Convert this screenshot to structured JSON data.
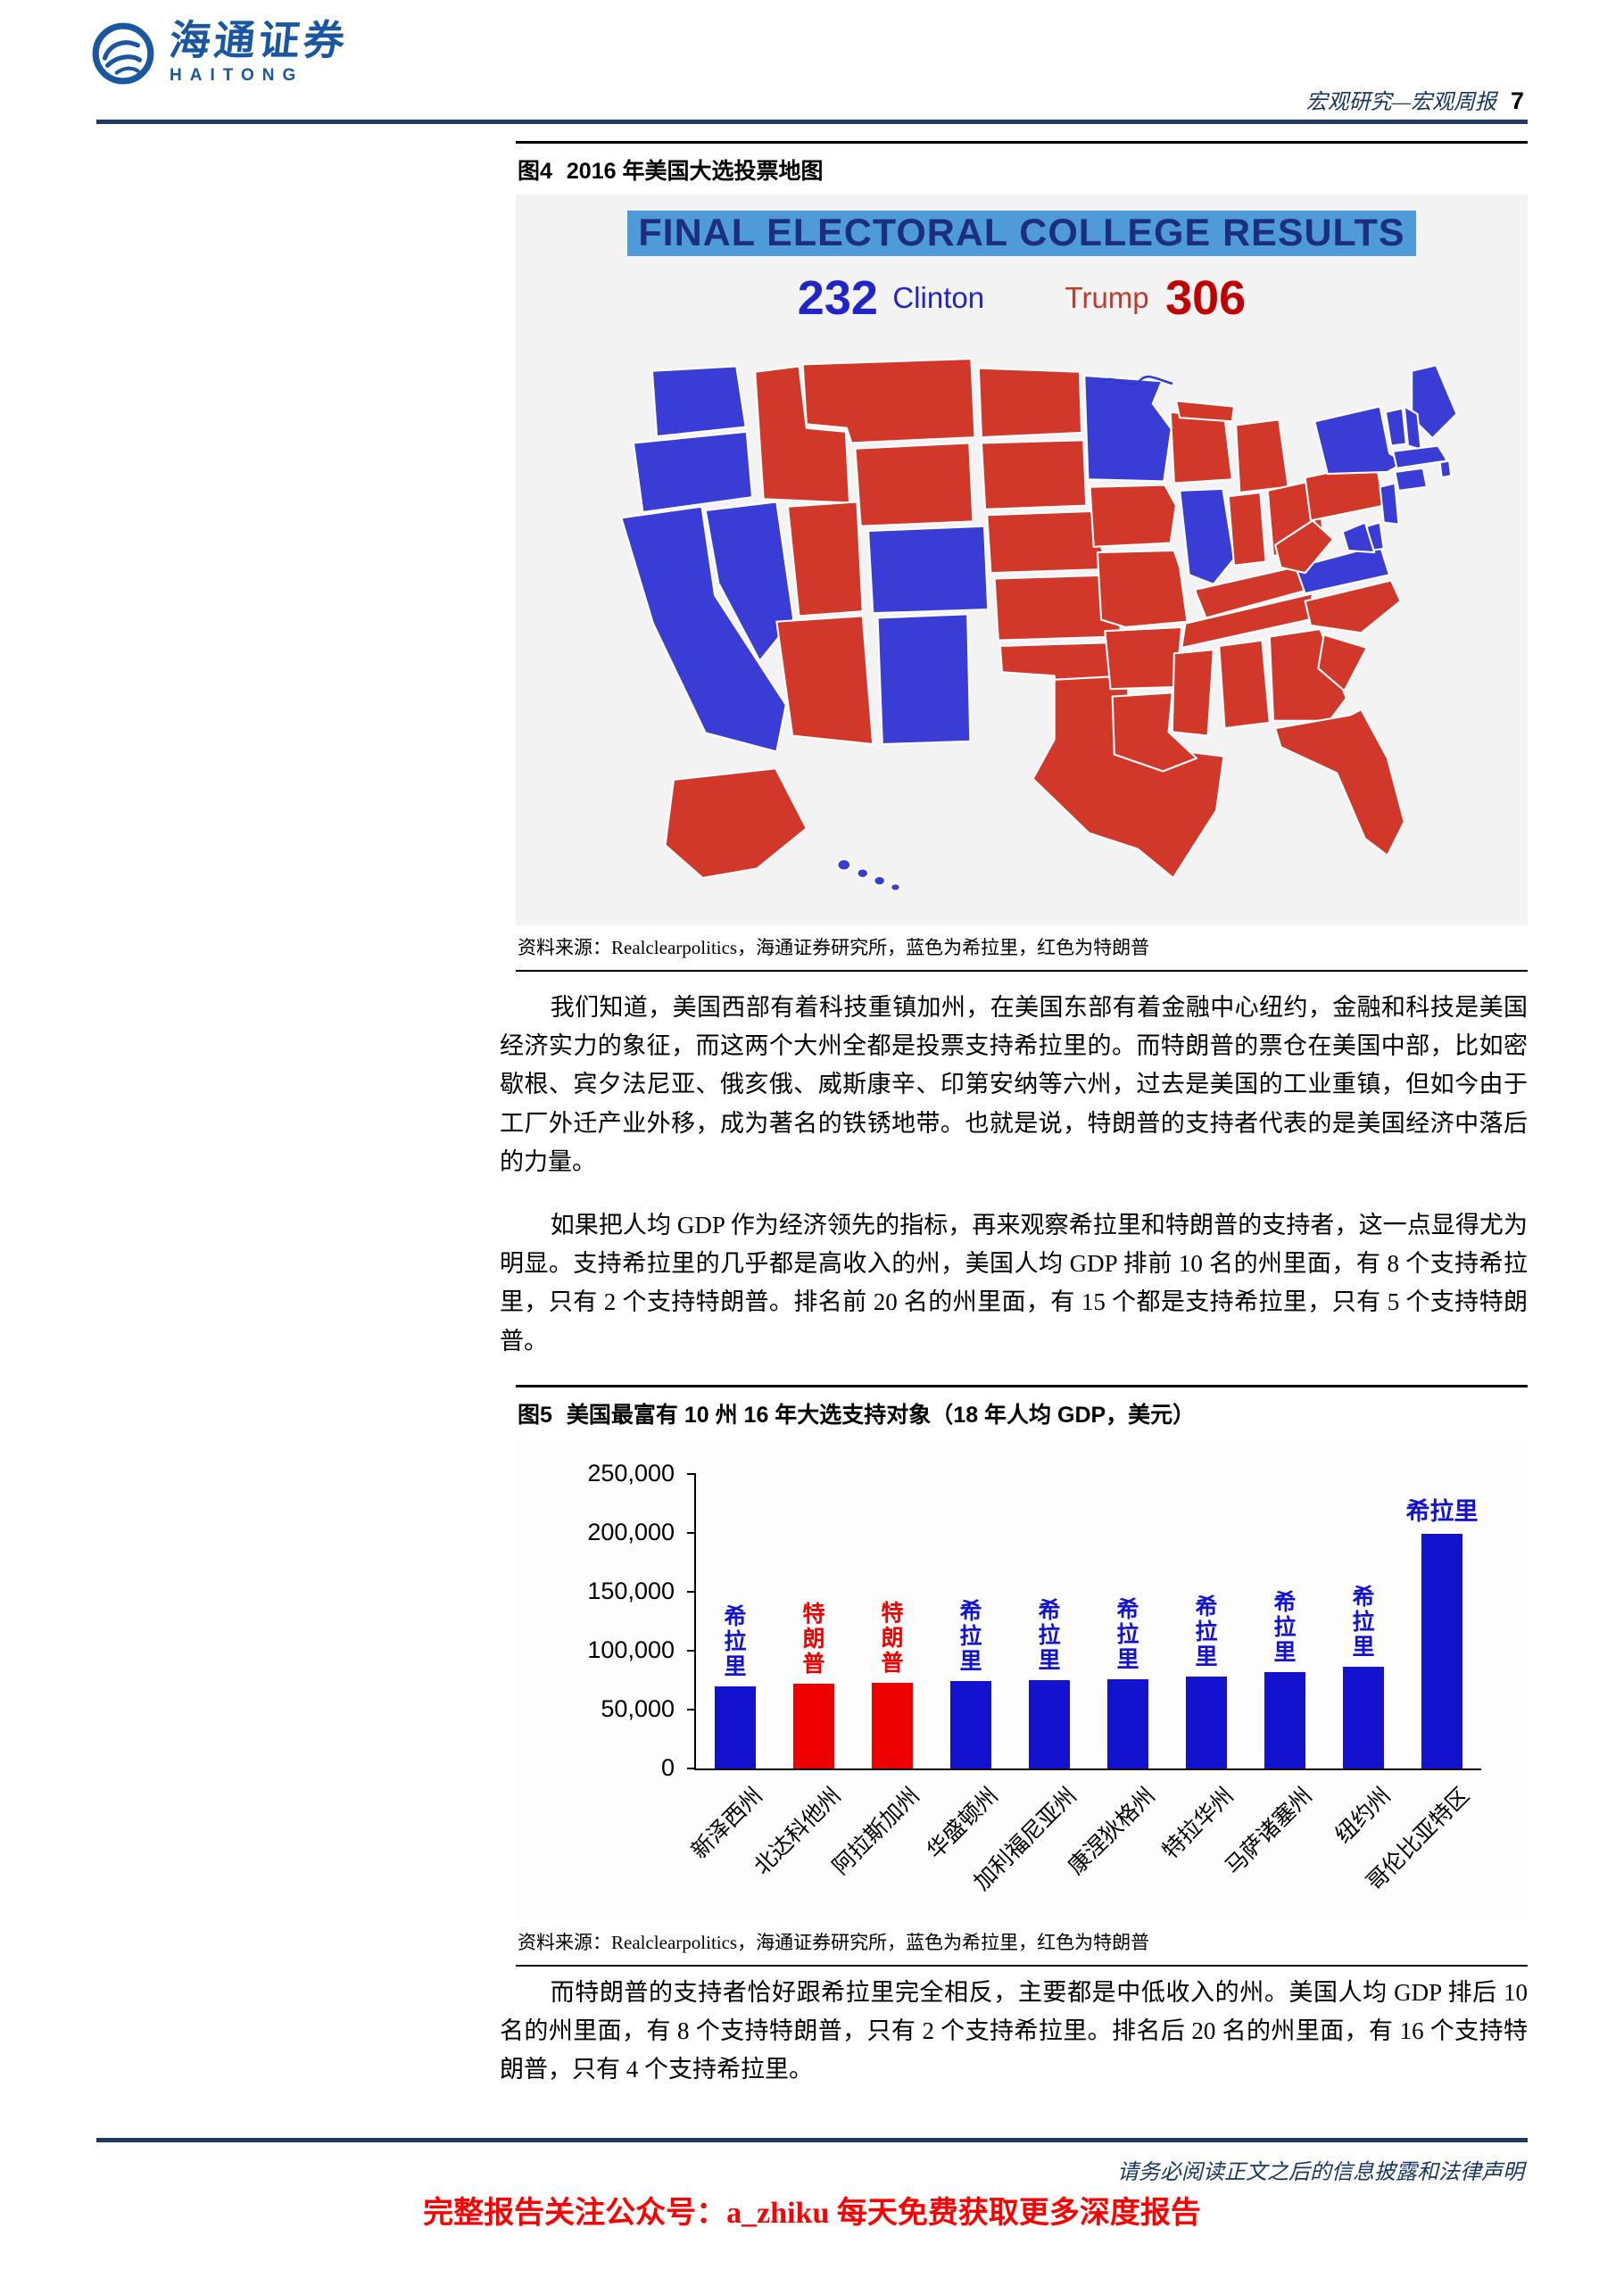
{
  "header": {
    "brand_cn": "海通证券",
    "brand_en": "HAITONG",
    "doc_type": "宏观研究—宏观周报",
    "page_number": "7"
  },
  "figure4": {
    "tag": "图4",
    "title": "2016 年美国大选投票地图",
    "banner": "FINAL ELECTORAL COLLEGE RESULTS",
    "clinton_value": "232",
    "clinton_name": "Clinton",
    "trump_name": "Trump",
    "trump_value": "306",
    "source": "资料来源：Realclearpolitics，海通证券研究所，蓝色为希拉里，红色为特朗普",
    "map": {
      "dem_color": "#3a3cd6",
      "rep_color": "#d2382a",
      "parties": {
        "WA": "D",
        "OR": "D",
        "CA": "D",
        "NV": "D",
        "ID": "R",
        "MT": "R",
        "WY": "R",
        "UT": "R",
        "CO": "D",
        "AZ": "R",
        "NM": "D",
        "ND": "R",
        "SD": "R",
        "NE": "R",
        "KS": "R",
        "OK": "R",
        "TX": "R",
        "MN": "D",
        "IA": "R",
        "MO": "R",
        "AR": "R",
        "LA": "R",
        "WI": "R",
        "IL": "D",
        "MI": "R",
        "IN": "R",
        "OH": "R",
        "KY": "R",
        "TN": "R",
        "MS": "R",
        "AL": "R",
        "GA": "R",
        "FL": "R",
        "SC": "R",
        "NC": "R",
        "VA": "D",
        "WV": "R",
        "PA": "R",
        "NY": "D",
        "ME": "D",
        "VT": "D",
        "NH": "D",
        "MA": "D",
        "CT": "D",
        "RI": "D",
        "NJ": "D",
        "DE": "D",
        "MD": "D",
        "AK": "R",
        "HI": "D"
      }
    }
  },
  "paragraphs": {
    "p1": "我们知道，美国西部有着科技重镇加州，在美国东部有着金融中心纽约，金融和科技是美国经济实力的象征，而这两个大州全都是投票支持希拉里的。而特朗普的票仓在美国中部，比如密歇根、宾夕法尼亚、俄亥俄、威斯康辛、印第安纳等六州，过去是美国的工业重镇，但如今由于工厂外迁产业外移，成为著名的铁锈地带。也就是说，特朗普的支持者代表的是美国经济中落后的力量。",
    "p2": "如果把人均 GDP 作为经济领先的指标，再来观察希拉里和特朗普的支持者，这一点显得尤为明显。支持希拉里的几乎都是高收入的州，美国人均 GDP 排前 10 名的州里面，有 8 个支持希拉里，只有 2 个支持特朗普。排名前 20 名的州里面，有 15 个都是支持希拉里，只有 5 个支持特朗普。",
    "p3": "而特朗普的支持者恰好跟希拉里完全相反，主要都是中低收入的州。美国人均 GDP 排后 10 名的州里面，有 8 个支持特朗普，只有 2 个支持希拉里。排名后 20 名的州里面，有 16 个支持特朗普，只有 4 个支持希拉里。"
  },
  "figure5": {
    "tag": "图5",
    "title": "美国最富有 10 州 16 年大选支持对象（18 年人均 GDP，美元）",
    "source": "资料来源：Realclearpolitics，海通证券研究所，蓝色为希拉里，红色为特朗普",
    "chart_data": {
      "type": "bar",
      "title": "美国最富有 10 州 16 年大选支持对象（18 年人均 GDP，美元）",
      "categories": [
        "新泽西州",
        "北达科他州",
        "阿拉斯加州",
        "华盛顿州",
        "加利福尼亚州",
        "康涅狄格州",
        "特拉华州",
        "马萨诸塞州",
        "纽约州",
        "哥伦比亚特区"
      ],
      "values": [
        70000,
        72000,
        73000,
        74000,
        75000,
        76000,
        78000,
        82000,
        86000,
        199000
      ],
      "bar_labels": [
        "希拉里",
        "特朗普",
        "特朗普",
        "希拉里",
        "希拉里",
        "希拉里",
        "希拉里",
        "希拉里",
        "希拉里",
        "希拉里"
      ],
      "parties": [
        "D",
        "R",
        "R",
        "D",
        "D",
        "D",
        "D",
        "D",
        "D",
        "D"
      ],
      "label_orientation": [
        "vertical",
        "vertical",
        "vertical",
        "vertical",
        "vertical",
        "vertical",
        "vertical",
        "vertical",
        "vertical",
        "horizontal"
      ],
      "colors": {
        "dem": "#1313cf",
        "rep": "#ee0000"
      },
      "xlabel": "",
      "ylabel": "",
      "ylim": [
        0,
        250000
      ],
      "yticks": [
        "0",
        "50,000",
        "100,000",
        "150,000",
        "200,000",
        "250,000"
      ],
      "grid": false,
      "legend": false
    }
  },
  "footer": {
    "disclaimer": "请务必阅读正文之后的信息披露和法律声明",
    "promo": "完整报告关注公众号：a_zhiku 每天免费获取更多深度报告"
  }
}
